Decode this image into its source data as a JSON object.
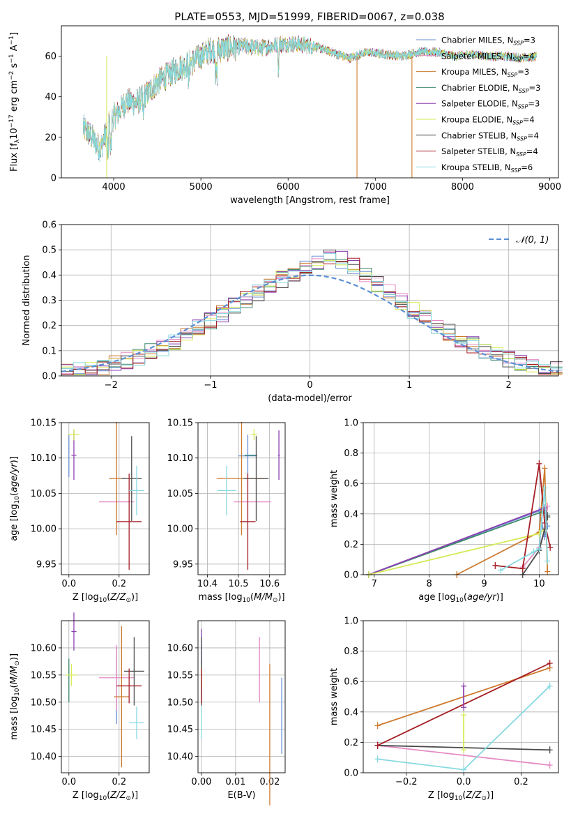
{
  "figure_title": "PLATE=0553, MJD=51999, FIBERID=0067, z=0.038",
  "colors": {
    "Chabrier MILES": "#6a8fd6",
    "Salpeter MILES": "#e58bc4",
    "Kroupa MILES": "#cd7a2e",
    "Chabrier ELODIE": "#3f8a6c",
    "Salpeter ELODIE": "#8c3fb0",
    "Kroupa ELODIE": "#d6ea55",
    "Chabrier STELIB": "#4a4a4a",
    "Salpeter STELIB": "#a51d24",
    "Kroupa STELIB": "#86d9e0",
    "normal_curve": "#5b8fd4"
  },
  "chart_data": [
    {
      "id": "spectrum",
      "type": "line",
      "xlabel": "wavelength [Angstrom, rest frame]",
      "ylabel": "Flux [f_λ 10^-17 erg cm^-2 s^-1 A^-1]",
      "xlim": [
        3400,
        9100
      ],
      "ylim": [
        0,
        75
      ],
      "xticks": [
        4000,
        5000,
        6000,
        7000,
        8000,
        9000
      ],
      "yticks": [
        0,
        20,
        40,
        60
      ],
      "grid": false,
      "legend_position": "top-right",
      "series": [
        {
          "name": "Chabrier MILES, N_SSP=3"
        },
        {
          "name": "Salpeter MILES, N_SSP=4"
        },
        {
          "name": "Kroupa MILES, N_SSP=3"
        },
        {
          "name": "Chabrier ELODIE, N_SSP=3"
        },
        {
          "name": "Salpeter ELODIE, N_SSP=3"
        },
        {
          "name": "Kroupa ELODIE, N_SSP=4"
        },
        {
          "name": "Chabrier STELIB, N_SSP=4"
        },
        {
          "name": "Salpeter STELIB, N_SSP=4"
        },
        {
          "name": "Kroupa STELIB, N_SSP=6"
        }
      ],
      "continuum": {
        "x": [
          3650,
          3750,
          3850,
          3950,
          4050,
          4150,
          4250,
          4350,
          4500,
          4700,
          4900,
          5100,
          5300,
          5500,
          5700,
          5900,
          6100,
          6300,
          6500,
          6700,
          6900,
          7100,
          7300,
          7500,
          7700,
          7900,
          8100,
          8300,
          8500,
          8700,
          8850
        ],
        "y": [
          25,
          20,
          14,
          28,
          32,
          38,
          37,
          40,
          47,
          53,
          57,
          63,
          64,
          65,
          64,
          66,
          66,
          65,
          62,
          59,
          62,
          61,
          60,
          62,
          62,
          60,
          61,
          60,
          60,
          59,
          60
        ]
      },
      "drop_lines": [
        {
          "x": 3920,
          "color": "#d6ea55"
        },
        {
          "x": 6790,
          "color": "#cd7a2e"
        },
        {
          "x": 7420,
          "color": "#cd7a2e"
        }
      ]
    },
    {
      "id": "residuals",
      "type": "line",
      "xlabel": "(data-model)/error",
      "ylabel": "Normed distribution",
      "xlim": [
        -2.5,
        2.5
      ],
      "ylim": [
        0,
        0.6
      ],
      "xticks": [
        -2,
        -1,
        0,
        1,
        2
      ],
      "yticks": [
        0.0,
        0.1,
        0.2,
        0.3,
        0.4,
        0.5,
        0.6
      ],
      "grid": true,
      "legend_position": "top-right",
      "legend": [
        "𝒩(0, 1)"
      ]
    },
    {
      "id": "age_vs_Z",
      "type": "scatter",
      "xlabel": "Z [log10(Z/Z⊙)]",
      "ylabel": "age [log10(age/yr)]",
      "xlim": [
        -0.03,
        0.32
      ],
      "ylim": [
        9.935,
        10.15
      ],
      "xticks": [
        0.0,
        0.2
      ],
      "yticks": [
        9.95,
        10.0,
        10.05,
        10.1,
        10.15
      ],
      "grid": true,
      "points": [
        {
          "series": "Chabrier MILES",
          "x": 0.0,
          "y": 10.103
        },
        {
          "series": "Salpeter MILES",
          "x": 0.19,
          "y": 10.038
        },
        {
          "series": "Kroupa MILES",
          "x": 0.19,
          "y": 10.071
        },
        {
          "series": "Chabrier ELODIE",
          "x": 0.0,
          "y": 10.104
        },
        {
          "series": "Salpeter ELODIE",
          "x": 0.02,
          "y": 10.104
        },
        {
          "series": "Kroupa ELODIE",
          "x": 0.02,
          "y": 10.133
        },
        {
          "series": "Chabrier STELIB",
          "x": 0.25,
          "y": 10.071
        },
        {
          "series": "Salpeter STELIB",
          "x": 0.24,
          "y": 10.01
        },
        {
          "series": "Kroupa STELIB",
          "x": 0.27,
          "y": 10.054
        }
      ]
    },
    {
      "id": "age_vs_mass",
      "type": "scatter",
      "xlabel": "mass [log10(M/M⊙)]",
      "ylabel": "",
      "xlim": [
        10.37,
        10.65
      ],
      "ylim": [
        9.935,
        10.15
      ],
      "xticks": [
        10.4,
        10.5,
        10.6
      ],
      "yticks": [
        9.95,
        10.0,
        10.05,
        10.1,
        10.15
      ],
      "grid": true,
      "points": [
        {
          "series": "Chabrier MILES",
          "x": 10.53,
          "y": 10.103
        },
        {
          "series": "Salpeter MILES",
          "x": 10.545,
          "y": 10.038
        },
        {
          "series": "Kroupa MILES",
          "x": 10.51,
          "y": 10.071
        },
        {
          "series": "Chabrier ELODIE",
          "x": 10.54,
          "y": 10.104
        },
        {
          "series": "Salpeter ELODIE",
          "x": 10.63,
          "y": 10.104
        },
        {
          "series": "Kroupa ELODIE",
          "x": 10.55,
          "y": 10.133
        },
        {
          "series": "Chabrier STELIB",
          "x": 10.557,
          "y": 10.071
        },
        {
          "series": "Salpeter STELIB",
          "x": 10.53,
          "y": 10.01
        },
        {
          "series": "Kroupa STELIB",
          "x": 10.462,
          "y": 10.054
        }
      ]
    },
    {
      "id": "massweight_vs_age",
      "type": "line",
      "xlabel": "age [log10(age/yr)]",
      "ylabel": "mass weight",
      "xlim": [
        6.8,
        10.35
      ],
      "ylim": [
        0,
        1.0
      ],
      "xticks": [
        7,
        8,
        9,
        10
      ],
      "yticks": [
        0.0,
        0.2,
        0.4,
        0.6,
        0.8,
        1.0
      ],
      "grid": true,
      "series": [
        {
          "series": "Chabrier MILES",
          "x": [
            6.9,
            10.0,
            10.1,
            10.15
          ],
          "y": [
            0.0,
            0.42,
            0.25,
            0.32
          ]
        },
        {
          "series": "Salpeter MILES",
          "x": [
            9.7,
            10.0,
            10.1,
            10.15
          ],
          "y": [
            0.05,
            0.18,
            0.3,
            0.45
          ]
        },
        {
          "series": "Kroupa MILES",
          "x": [
            8.5,
            10.0,
            10.1,
            10.15
          ],
          "y": [
            0.0,
            0.28,
            0.7,
            0.02
          ]
        },
        {
          "series": "Chabrier ELODIE",
          "x": [
            6.9,
            10.1,
            10.15
          ],
          "y": [
            0.0,
            0.42,
            0.39
          ]
        },
        {
          "series": "Salpeter ELODIE",
          "x": [
            6.9,
            10.1,
            10.15
          ],
          "y": [
            0.0,
            0.44,
            0.38
          ]
        },
        {
          "series": "Kroupa ELODIE",
          "x": [
            6.9,
            10.0,
            10.1,
            10.15
          ],
          "y": [
            0.0,
            0.27,
            0.3,
            0.38
          ]
        },
        {
          "series": "Chabrier STELIB",
          "x": [
            9.7,
            10.0,
            10.1,
            10.15
          ],
          "y": [
            0.0,
            0.16,
            0.3,
            0.38
          ]
        },
        {
          "series": "Salpeter STELIB",
          "x": [
            9.2,
            9.7,
            10.0,
            10.1,
            10.2
          ],
          "y": [
            0.06,
            0.04,
            0.73,
            0.34,
            0.18
          ]
        },
        {
          "series": "Kroupa STELIB",
          "x": [
            9.3,
            9.9,
            10.0,
            10.1,
            10.15
          ],
          "y": [
            0.03,
            0.15,
            0.17,
            0.57,
            0.09
          ]
        }
      ]
    },
    {
      "id": "mass_vs_Z",
      "type": "scatter",
      "xlabel": "Z [log10(Z/Z⊙)]",
      "ylabel": "mass [log10(M/M⊙)]",
      "xlim": [
        -0.03,
        0.32
      ],
      "ylim": [
        10.37,
        10.65
      ],
      "xticks": [
        0.0,
        0.2
      ],
      "yticks": [
        10.4,
        10.45,
        10.5,
        10.55,
        10.6
      ],
      "grid": true,
      "points": [
        {
          "series": "Chabrier MILES",
          "x": 0.19,
          "y": 10.53
        },
        {
          "series": "Salpeter MILES",
          "x": 0.19,
          "y": 10.545
        },
        {
          "series": "Kroupa MILES",
          "x": 0.21,
          "y": 10.51
        },
        {
          "series": "Chabrier ELODIE",
          "x": 0.0,
          "y": 10.54
        },
        {
          "series": "Salpeter ELODIE",
          "x": 0.02,
          "y": 10.63
        },
        {
          "series": "Kroupa ELODIE",
          "x": 0.01,
          "y": 10.55
        },
        {
          "series": "Chabrier STELIB",
          "x": 0.26,
          "y": 10.557
        },
        {
          "series": "Salpeter STELIB",
          "x": 0.24,
          "y": 10.53
        },
        {
          "series": "Kroupa STELIB",
          "x": 0.27,
          "y": 10.462
        }
      ]
    },
    {
      "id": "mass_vs_ebv",
      "type": "scatter",
      "xlabel": "E(B-V)",
      "ylabel": "",
      "xlim": [
        -0.001,
        0.0245
      ],
      "ylim": [
        10.37,
        10.65
      ],
      "xticks": [
        0.0,
        0.01,
        0.02
      ],
      "yticks": [
        10.4,
        10.45,
        10.5,
        10.55,
        10.6
      ],
      "grid": true,
      "points": [
        {
          "series": "Chabrier MILES",
          "x": 0.0235,
          "y": 10.475
        },
        {
          "series": "Salpeter MILES",
          "x": 0.017,
          "y": 10.56
        },
        {
          "series": "Kroupa MILES",
          "x": 0.02,
          "y": 10.44
        },
        {
          "series": "Chabrier ELODIE",
          "x": 0.0,
          "y": 10.54
        },
        {
          "series": "Salpeter ELODIE",
          "x": 0.0,
          "y": 10.6
        },
        {
          "series": "Kroupa ELODIE",
          "x": 0.0,
          "y": 10.55
        },
        {
          "series": "Chabrier STELIB",
          "x": 0.0,
          "y": 10.557
        },
        {
          "series": "Salpeter STELIB",
          "x": 0.0,
          "y": 10.53
        },
        {
          "series": "Kroupa STELIB",
          "x": 0.0,
          "y": 10.462
        }
      ]
    },
    {
      "id": "massweight_vs_Z",
      "type": "line",
      "xlabel": "Z [log10(Z/Z⊙)]",
      "ylabel": "mass weight",
      "xlim": [
        -0.35,
        0.33
      ],
      "ylim": [
        0,
        1.0
      ],
      "xticks": [
        -0.2,
        0.0,
        0.2
      ],
      "yticks": [
        0.0,
        0.2,
        0.4,
        0.6,
        0.8,
        1.0
      ],
      "grid": true,
      "series": [
        {
          "series": "Salpeter MILES",
          "x": [
            -0.3,
            0.3
          ],
          "y": [
            0.18,
            0.05
          ]
        },
        {
          "series": "Chabrier STELIB",
          "x": [
            -0.3,
            0.3
          ],
          "y": [
            0.18,
            0.15
          ]
        },
        {
          "series": "Kroupa MILES",
          "x": [
            -0.3,
            0.3
          ],
          "y": [
            0.31,
            0.69
          ]
        },
        {
          "series": "Salpeter STELIB",
          "x": [
            -0.3,
            0.3
          ],
          "y": [
            0.18,
            0.72
          ]
        },
        {
          "series": "Kroupa STELIB",
          "x": [
            -0.3,
            0.0,
            0.3
          ],
          "y": [
            0.09,
            0.02,
            0.57
          ]
        },
        {
          "series": "Salpeter ELODIE",
          "x": [
            0.0,
            0.0
          ],
          "y": [
            0.43,
            0.57
          ]
        },
        {
          "series": "Kroupa ELODIE",
          "x": [
            0.0,
            0.0
          ],
          "y": [
            0.15,
            0.38
          ]
        }
      ]
    }
  ]
}
